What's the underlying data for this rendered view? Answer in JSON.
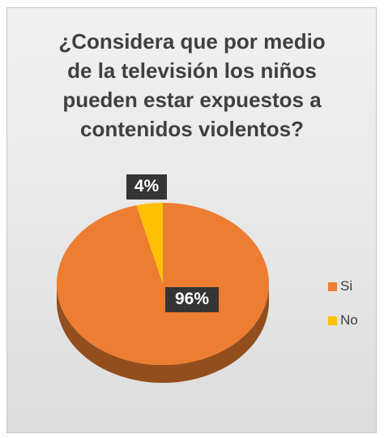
{
  "chart_data": {
    "type": "pie",
    "title": "¿Considera que por medio de la televisión los niños pueden estar expuestos a contenidos violentos?",
    "title_lines": [
      "¿Considera que por medio",
      "de la televisión los niños",
      "pueden estar expuestos a",
      "contenidos violentos?"
    ],
    "categories": [
      "Si",
      "No"
    ],
    "values": [
      96,
      4
    ],
    "data_labels": [
      "96%",
      "4%"
    ],
    "colors": [
      "#ED7D31",
      "#FFC000"
    ],
    "legend_position": "right"
  }
}
